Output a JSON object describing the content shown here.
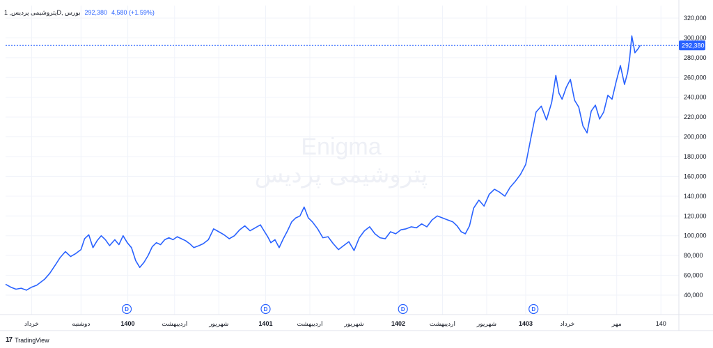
{
  "header": {
    "symbol": "پتروشیمی پردیس, 1D, بورس",
    "price": "292,380",
    "change": "4,580 (+1.59%)"
  },
  "footer": {
    "brand": "TradingView",
    "logo": "17"
  },
  "watermark": {
    "en": "Enigma",
    "fa": "پتروشیمی پردیس"
  },
  "colors": {
    "line": "#2962ff",
    "axis_text": "#131722",
    "grid": "#f0f3fa",
    "price_line": "#2962ff"
  },
  "chart_data": {
    "type": "line",
    "last_price": 292380,
    "last_price_label": "292,380",
    "ylim": [
      20000,
      330000
    ],
    "y_ticks": [
      40000,
      60000,
      80000,
      100000,
      120000,
      140000,
      160000,
      180000,
      200000,
      220000,
      240000,
      260000,
      280000,
      300000,
      320000
    ],
    "y_tick_labels": [
      "40,000",
      "60,000",
      "80,000",
      "100,000",
      "120,000",
      "140,000",
      "160,000",
      "180,000",
      "200,000",
      "220,000",
      "240,000",
      "260,000",
      "280,000",
      "300,000",
      "320,000"
    ],
    "x_ticks": [
      {
        "label": "خرداد",
        "t": 0.05,
        "bold": false
      },
      {
        "label": "دوشنبه",
        "t": 0.145,
        "bold": false
      },
      {
        "label": "1400",
        "t": 0.235,
        "bold": true
      },
      {
        "label": "اردیبهشت",
        "t": 0.325,
        "bold": false
      },
      {
        "label": "شهریور",
        "t": 0.41,
        "bold": false
      },
      {
        "label": "1401",
        "t": 0.5,
        "bold": true
      },
      {
        "label": "اردیبهشت",
        "t": 0.585,
        "bold": false
      },
      {
        "label": "شهریور",
        "t": 0.67,
        "bold": false
      },
      {
        "label": "1402",
        "t": 0.755,
        "bold": true
      },
      {
        "label": "اردیبهشت",
        "t": 0.84,
        "bold": false
      },
      {
        "label": "شهریور",
        "t": 0.925,
        "bold": false
      },
      {
        "label": "1403",
        "t": 1.0,
        "bold": true
      },
      {
        "label": "خرداد",
        "t": 1.08,
        "bold": false
      },
      {
        "label": "مهر",
        "t": 1.175,
        "bold": false
      },
      {
        "label": "140",
        "t": 1.26,
        "bold": false
      }
    ],
    "dividend_markers": [
      {
        "label": "D",
        "t": 0.233
      },
      {
        "label": "D",
        "t": 0.5
      },
      {
        "label": "D",
        "t": 0.764
      },
      {
        "label": "D",
        "t": 1.015
      }
    ],
    "series": [
      {
        "values": [
          [
            0,
            51000
          ],
          [
            0.01,
            48000
          ],
          [
            0.02,
            46000
          ],
          [
            0.03,
            47000
          ],
          [
            0.04,
            45000
          ],
          [
            0.05,
            48000
          ],
          [
            0.06,
            50000
          ],
          [
            0.075,
            56000
          ],
          [
            0.085,
            62000
          ],
          [
            0.095,
            70000
          ],
          [
            0.105,
            78000
          ],
          [
            0.115,
            84000
          ],
          [
            0.125,
            79000
          ],
          [
            0.135,
            82000
          ],
          [
            0.145,
            86000
          ],
          [
            0.152,
            97000
          ],
          [
            0.16,
            101000
          ],
          [
            0.168,
            88000
          ],
          [
            0.176,
            95000
          ],
          [
            0.184,
            100000
          ],
          [
            0.192,
            96000
          ],
          [
            0.2,
            90000
          ],
          [
            0.21,
            96000
          ],
          [
            0.218,
            91000
          ],
          [
            0.226,
            100000
          ],
          [
            0.234,
            93000
          ],
          [
            0.242,
            88000
          ],
          [
            0.25,
            75000
          ],
          [
            0.258,
            68000
          ],
          [
            0.266,
            73000
          ],
          [
            0.274,
            80000
          ],
          [
            0.282,
            89000
          ],
          [
            0.29,
            93000
          ],
          [
            0.298,
            91000
          ],
          [
            0.306,
            96000
          ],
          [
            0.314,
            98000
          ],
          [
            0.322,
            96000
          ],
          [
            0.33,
            99000
          ],
          [
            0.338,
            97000
          ],
          [
            0.346,
            95000
          ],
          [
            0.354,
            92000
          ],
          [
            0.362,
            88000
          ],
          [
            0.372,
            90000
          ],
          [
            0.38,
            92000
          ],
          [
            0.39,
            96000
          ],
          [
            0.4,
            107000
          ],
          [
            0.41,
            104000
          ],
          [
            0.42,
            101000
          ],
          [
            0.43,
            97000
          ],
          [
            0.44,
            100000
          ],
          [
            0.45,
            106000
          ],
          [
            0.46,
            110000
          ],
          [
            0.47,
            105000
          ],
          [
            0.48,
            108000
          ],
          [
            0.49,
            111000
          ],
          [
            0.498,
            104000
          ],
          [
            0.504,
            99000
          ],
          [
            0.51,
            93000
          ],
          [
            0.518,
            96000
          ],
          [
            0.526,
            88000
          ],
          [
            0.534,
            97000
          ],
          [
            0.542,
            105000
          ],
          [
            0.55,
            114000
          ],
          [
            0.558,
            118000
          ],
          [
            0.566,
            120000
          ],
          [
            0.574,
            129000
          ],
          [
            0.582,
            118000
          ],
          [
            0.59,
            114000
          ],
          [
            0.6,
            107000
          ],
          [
            0.61,
            98000
          ],
          [
            0.62,
            99000
          ],
          [
            0.63,
            92000
          ],
          [
            0.64,
            86000
          ],
          [
            0.65,
            90000
          ],
          [
            0.66,
            94000
          ],
          [
            0.67,
            85000
          ],
          [
            0.68,
            98000
          ],
          [
            0.69,
            105000
          ],
          [
            0.7,
            109000
          ],
          [
            0.71,
            102000
          ],
          [
            0.72,
            98000
          ],
          [
            0.73,
            97000
          ],
          [
            0.74,
            104000
          ],
          [
            0.75,
            102000
          ],
          [
            0.76,
            106000
          ],
          [
            0.77,
            107000
          ],
          [
            0.78,
            109000
          ],
          [
            0.79,
            108000
          ],
          [
            0.8,
            112000
          ],
          [
            0.81,
            109000
          ],
          [
            0.82,
            116000
          ],
          [
            0.83,
            120000
          ],
          [
            0.84,
            118000
          ],
          [
            0.85,
            116000
          ],
          [
            0.86,
            114000
          ],
          [
            0.868,
            110000
          ],
          [
            0.876,
            104000
          ],
          [
            0.884,
            102000
          ],
          [
            0.892,
            110000
          ],
          [
            0.9,
            128000
          ],
          [
            0.91,
            136000
          ],
          [
            0.92,
            130000
          ],
          [
            0.93,
            142000
          ],
          [
            0.94,
            147000
          ],
          [
            0.95,
            144000
          ],
          [
            0.96,
            140000
          ],
          [
            0.97,
            149000
          ],
          [
            0.98,
            155000
          ],
          [
            0.99,
            162000
          ],
          [
            1.0,
            172000
          ],
          [
            1.01,
            199000
          ],
          [
            1.02,
            225000
          ],
          [
            1.03,
            231000
          ],
          [
            1.04,
            217000
          ],
          [
            1.05,
            235000
          ],
          [
            1.058,
            262000
          ],
          [
            1.064,
            244000
          ],
          [
            1.07,
            238000
          ],
          [
            1.078,
            250000
          ],
          [
            1.086,
            258000
          ],
          [
            1.094,
            237000
          ],
          [
            1.102,
            230000
          ],
          [
            1.11,
            211000
          ],
          [
            1.118,
            204000
          ],
          [
            1.126,
            226000
          ],
          [
            1.134,
            232000
          ],
          [
            1.142,
            218000
          ],
          [
            1.15,
            225000
          ],
          [
            1.158,
            242000
          ],
          [
            1.166,
            238000
          ],
          [
            1.174,
            256000
          ],
          [
            1.182,
            272000
          ],
          [
            1.19,
            253000
          ],
          [
            1.196,
            265000
          ],
          [
            1.2,
            280000
          ],
          [
            1.204,
            302000
          ],
          [
            1.21,
            285000
          ],
          [
            1.216,
            289000
          ],
          [
            1.22,
            292380
          ]
        ]
      }
    ]
  }
}
